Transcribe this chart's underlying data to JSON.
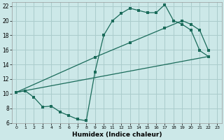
{
  "xlabel": "Humidex (Indice chaleur)",
  "background_color": "#cce8e8",
  "grid_color": "#aacccc",
  "line_color": "#1a6b5a",
  "xlim": [
    -0.5,
    23.5
  ],
  "ylim": [
    6,
    22.5
  ],
  "xticks": [
    0,
    1,
    2,
    3,
    4,
    5,
    6,
    7,
    8,
    9,
    10,
    11,
    12,
    13,
    14,
    15,
    16,
    17,
    18,
    19,
    20,
    21,
    22,
    23
  ],
  "yticks": [
    6,
    8,
    10,
    12,
    14,
    16,
    18,
    20,
    22
  ],
  "line1_x": [
    0,
    1,
    2,
    3,
    4,
    5,
    6,
    7,
    8,
    9,
    10,
    11,
    12,
    13,
    14,
    15,
    16,
    17,
    18,
    19,
    20,
    21,
    22
  ],
  "line1_y": [
    10.2,
    10.4,
    9.5,
    8.2,
    8.3,
    7.5,
    7.0,
    6.5,
    6.3,
    13.0,
    18.0,
    20.0,
    21.0,
    21.7,
    21.4,
    21.1,
    21.1,
    22.2,
    20.0,
    19.5,
    18.7,
    15.9,
    15.1
  ],
  "line2_x": [
    0,
    9,
    13,
    17,
    19,
    20,
    21,
    22
  ],
  "line2_y": [
    10.2,
    15.0,
    17.0,
    19.0,
    20.0,
    19.5,
    18.7,
    15.9
  ],
  "line3_x": [
    0,
    22
  ],
  "line3_y": [
    10.2,
    15.1
  ],
  "figsize": [
    3.2,
    2.0
  ],
  "dpi": 100
}
